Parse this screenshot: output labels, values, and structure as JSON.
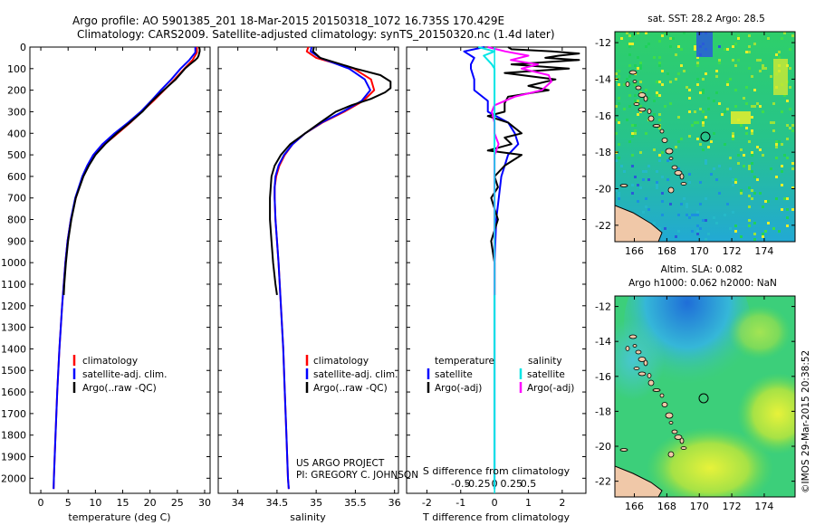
{
  "header": {
    "line1": "Argo profile: AO 5901385_201 18-Mar-2015 20150318_1072 16.735S 170.429E",
    "line2": "Climatology: CARS2009. Satellite-adjusted climatology: synTS_20150320.nc (1.4d later)"
  },
  "colors": {
    "climatology": "#ff0000",
    "satellite": "#0000ff",
    "argo": "#000000",
    "sat_salinity": "#00e5e5",
    "argo_salinity": "#ff00ff"
  },
  "chart_data": [
    {
      "type": "line",
      "name": "temperature-profile",
      "xlabel": "temperature (deg C)",
      "xlim": [
        -2,
        31
      ],
      "ylim": [
        2070,
        0
      ],
      "xticks": [
        "0",
        "5",
        "10",
        "15",
        "20",
        "25",
        "30"
      ],
      "yticks": [
        "0",
        "100",
        "200",
        "300",
        "400",
        "500",
        "600",
        "700",
        "800",
        "900",
        "1000",
        "1100",
        "1200",
        "1300",
        "1400",
        "1500",
        "1600",
        "1700",
        "1800",
        "1900",
        "2000"
      ],
      "legend": [
        "climatology",
        "satellite-adj. clim.",
        "Argo(..raw -QC)"
      ],
      "series": [
        {
          "name": "climatology",
          "depth": [
            0,
            25,
            60,
            100,
            150,
            200,
            250,
            300,
            350,
            400,
            450,
            500,
            550,
            600,
            700,
            800,
            900,
            1000,
            1200,
            1400,
            1600,
            1800,
            2000,
            2050
          ],
          "values": [
            28.6,
            28.6,
            27.8,
            26.3,
            24.5,
            22.6,
            20.6,
            18.5,
            16.4,
            14.1,
            11.7,
            9.8,
            8.6,
            7.7,
            6.4,
            5.5,
            4.9,
            4.5,
            3.9,
            3.4,
            3.0,
            2.7,
            2.4,
            2.35
          ]
        },
        {
          "name": "satellite-adj. clim.",
          "depth": [
            0,
            25,
            60,
            100,
            150,
            200,
            250,
            300,
            350,
            400,
            450,
            500,
            550,
            600,
            700,
            800,
            900,
            1000,
            1200,
            1400,
            1600,
            1800,
            2000,
            2050
          ],
          "values": [
            28.3,
            28.3,
            27.2,
            25.6,
            23.9,
            22.0,
            20.2,
            18.3,
            16.0,
            13.5,
            11.3,
            9.6,
            8.5,
            7.6,
            6.3,
            5.5,
            4.9,
            4.5,
            3.9,
            3.4,
            3.0,
            2.7,
            2.4,
            2.35
          ]
        },
        {
          "name": "Argo(..raw -QC)",
          "depth": [
            0,
            10,
            20,
            30,
            40,
            50,
            60,
            80,
            100,
            150,
            200,
            250,
            300,
            350,
            400,
            450,
            500,
            550,
            600,
            700,
            800,
            900,
            1000,
            1100,
            1150
          ],
          "values": [
            29.0,
            29.1,
            29.1,
            29.0,
            28.9,
            28.7,
            28.3,
            27.3,
            26.4,
            24.7,
            22.5,
            20.4,
            18.6,
            16.3,
            13.9,
            11.8,
            10.0,
            8.8,
            7.8,
            6.4,
            5.6,
            5.0,
            4.6,
            4.3,
            4.2
          ]
        }
      ]
    },
    {
      "type": "line",
      "name": "salinity-profile",
      "xlabel": "salinity",
      "xlim": [
        33.75,
        36.05
      ],
      "ylim": [
        2070,
        0
      ],
      "xticks": [
        "34",
        "34.5",
        "35",
        "35.5",
        "36"
      ],
      "legend": [
        "climatology",
        "satellite-adj. clim.",
        "Argo(..raw -QC)"
      ],
      "annotation": [
        "US ARGO PROJECT",
        "PI: GREGORY C. JOHNSON"
      ],
      "series": [
        {
          "name": "climatology",
          "depth": [
            0,
            20,
            50,
            100,
            150,
            200,
            250,
            300,
            350,
            400,
            450,
            500,
            550,
            600,
            650,
            700,
            800,
            900,
            1000,
            1200,
            1400,
            1600,
            1800,
            2000,
            2050
          ],
          "values": [
            34.9,
            34.88,
            35.0,
            35.48,
            35.7,
            35.74,
            35.6,
            35.36,
            35.08,
            34.86,
            34.7,
            34.6,
            34.53,
            34.49,
            34.47,
            34.47,
            34.48,
            34.5,
            34.52,
            34.55,
            34.58,
            34.6,
            34.62,
            34.64,
            34.65
          ]
        },
        {
          "name": "satellite-adj. clim.",
          "depth": [
            0,
            20,
            50,
            100,
            150,
            200,
            250,
            300,
            350,
            400,
            450,
            500,
            550,
            600,
            650,
            700,
            800,
            900,
            1000,
            1200,
            1400,
            1600,
            1800,
            2000,
            2050
          ],
          "values": [
            34.94,
            34.93,
            35.05,
            35.42,
            35.62,
            35.69,
            35.58,
            35.34,
            35.07,
            34.86,
            34.7,
            34.59,
            34.52,
            34.48,
            34.47,
            34.47,
            34.48,
            34.5,
            34.52,
            34.55,
            34.58,
            34.6,
            34.62,
            34.64,
            34.65
          ]
        },
        {
          "name": "Argo(..raw -QC)",
          "depth": [
            0,
            20,
            50,
            100,
            130,
            160,
            190,
            210,
            240,
            270,
            300,
            350,
            400,
            450,
            500,
            550,
            600,
            700,
            800,
            900,
            1000,
            1100,
            1150
          ],
          "values": [
            34.97,
            34.96,
            35.05,
            35.5,
            35.82,
            35.95,
            35.95,
            35.88,
            35.7,
            35.45,
            35.25,
            35.05,
            34.86,
            34.67,
            34.55,
            34.47,
            34.43,
            34.41,
            34.41,
            34.43,
            34.45,
            34.48,
            34.5
          ]
        }
      ]
    },
    {
      "type": "line",
      "name": "difference-profile",
      "xlabel": "T difference from climatology",
      "xlabel2": "S difference from climatology",
      "xlim": [
        -2.6,
        2.7
      ],
      "ylim": [
        2070,
        0
      ],
      "xticks": [
        "-2",
        "-1",
        "0",
        "1",
        "2"
      ],
      "xticks2": [
        "-0.5",
        "-0.25",
        "0",
        "0.25",
        "0.5"
      ],
      "legend_titles": [
        "temperature",
        "salinity"
      ],
      "legend": [
        "satellite",
        "Argo(-adj)",
        "satellite",
        "Argo(-adj)"
      ],
      "series": [
        {
          "name": "satellite",
          "variable": "temperature",
          "depth": [
            0,
            20,
            50,
            80,
            100,
            150,
            200,
            250,
            300,
            350,
            400,
            450,
            500,
            600,
            800,
            1000,
            1500,
            2050
          ],
          "values": [
            -0.3,
            -0.9,
            -0.6,
            -0.7,
            -0.7,
            -0.6,
            -0.6,
            -0.2,
            -0.2,
            0.4,
            0.6,
            0.7,
            0.4,
            0.2,
            0.05,
            0.0,
            0.0,
            0.0
          ]
        },
        {
          "name": "Argo(-adj)",
          "variable": "temperature",
          "depth": [
            0,
            10,
            20,
            30,
            40,
            50,
            60,
            80,
            100,
            120,
            150,
            180,
            200,
            230,
            260,
            300,
            320,
            350,
            400,
            420,
            450,
            480,
            500,
            550,
            600,
            650,
            700,
            800,
            900,
            1000,
            1100,
            1150
          ],
          "values": [
            0.4,
            0.5,
            1.7,
            2.5,
            1.9,
            1.5,
            2.5,
            0.5,
            2.2,
            0.3,
            1.8,
            1.0,
            1.6,
            0.4,
            0.3,
            0.3,
            -0.2,
            0.4,
            0.8,
            0.3,
            0.5,
            -0.2,
            0.8,
            0.3,
            0.0,
            0.1,
            -0.1,
            0.1,
            -0.1,
            0.0,
            0.0,
            0.0
          ]
        },
        {
          "name": "satellite",
          "variable": "salinity",
          "depth": [
            0,
            20,
            40,
            60,
            80,
            100,
            150,
            200,
            300,
            400,
            500,
            700,
            1000,
            2050
          ],
          "values": [
            -0.12,
            0.0,
            -0.08,
            -0.05,
            -0.02,
            0.0,
            0.0,
            0.0,
            0.0,
            0.0,
            0.0,
            0.0,
            0.0,
            0.0
          ]
        },
        {
          "name": "Argo(-adj)",
          "variable": "salinity",
          "depth": [
            0,
            20,
            40,
            60,
            80,
            100,
            130,
            160,
            200,
            230,
            270,
            300,
            350,
            400,
            450,
            500,
            600,
            700,
            800,
            900,
            1000,
            1100,
            1150
          ],
          "values": [
            -0.05,
            0.08,
            0.25,
            0.12,
            0.32,
            0.2,
            0.4,
            0.42,
            0.35,
            0.15,
            0.0,
            -0.02,
            0.0,
            0.0,
            0.03,
            0.0,
            0.0,
            0.0,
            0.0,
            0.0,
            0.0,
            0.0,
            0.0
          ]
        }
      ]
    }
  ],
  "maps": {
    "sst": {
      "title": "sat. SST: 28.2 Argo: 28.5",
      "yticks": [
        "-12",
        "-14",
        "-16",
        "-18",
        "-20",
        "-22"
      ],
      "xticks": [
        "166",
        "168",
        "170",
        "172",
        "174"
      ]
    },
    "sla": {
      "title1": "Altim. SLA: 0.082",
      "title2": "Argo h1000: 0.062 h2000: NaN",
      "yticks": [
        "-12",
        "-14",
        "-16",
        "-18",
        "-20",
        "-22"
      ],
      "xticks": [
        "166",
        "168",
        "170",
        "172",
        "174"
      ]
    }
  },
  "watermark": "©IMOS 29-Mar-2015 20:38:52"
}
